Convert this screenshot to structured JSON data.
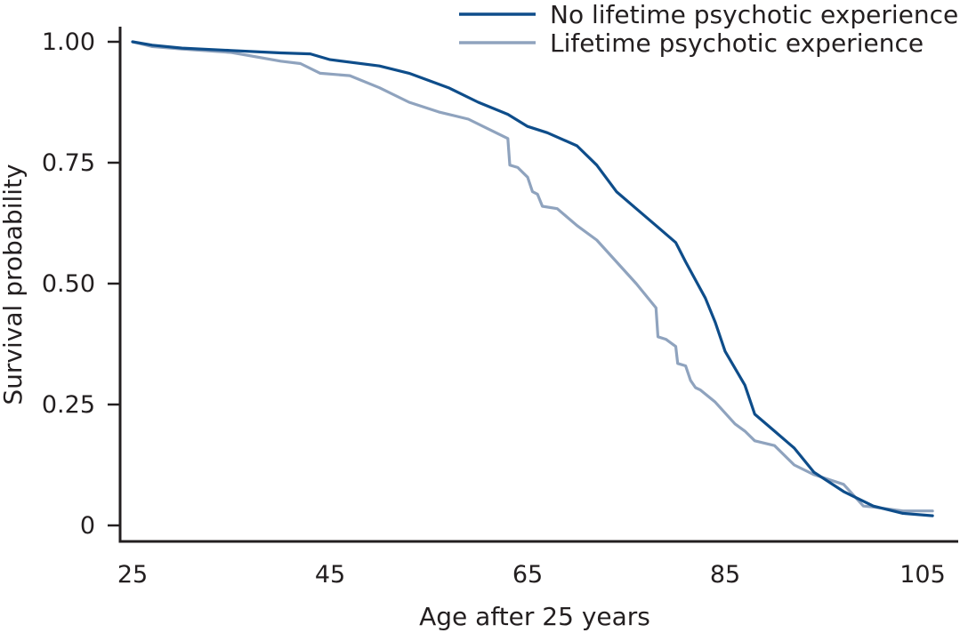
{
  "chart_data": {
    "type": "line",
    "title": "",
    "xlabel": "Age after 25 years",
    "ylabel": "Survival probability",
    "xlim": [
      25,
      107
    ],
    "ylim": [
      0,
      1.04
    ],
    "x_ticks": [
      25,
      45,
      65,
      85,
      105
    ],
    "y_ticks": [
      0,
      0.25,
      0.5,
      0.75,
      1.0
    ],
    "y_tick_labels": [
      "0",
      "0.25",
      "0.50",
      "0.75",
      "1.00"
    ],
    "x_tick_labels": [
      "25",
      "45",
      "65",
      "85",
      "105"
    ],
    "grid": false,
    "legend_position": "top-right",
    "series": [
      {
        "name": "No lifetime psychotic experience",
        "color": "#0e4d8a",
        "x": [
          25,
          27,
          30,
          35,
          40,
          43,
          45,
          50,
          53,
          57,
          60,
          63,
          65,
          67,
          70,
          72,
          74,
          76,
          78,
          80,
          81,
          83,
          84,
          85,
          87,
          88,
          90,
          92,
          94,
          97,
          100,
          103,
          106
        ],
        "y": [
          1.0,
          0.993,
          0.987,
          0.982,
          0.977,
          0.975,
          0.963,
          0.95,
          0.935,
          0.905,
          0.875,
          0.85,
          0.825,
          0.812,
          0.785,
          0.745,
          0.69,
          0.655,
          0.62,
          0.585,
          0.545,
          0.47,
          0.42,
          0.36,
          0.29,
          0.23,
          0.195,
          0.16,
          0.11,
          0.07,
          0.04,
          0.025,
          0.02
        ]
      },
      {
        "name": "Lifetime psychotic experience",
        "color": "#8fa3be",
        "x": [
          25,
          27,
          30,
          35,
          40,
          42,
          44,
          47,
          50,
          53,
          56,
          59,
          61,
          63,
          63.2,
          64,
          65,
          65.5,
          66,
          66.5,
          68,
          70,
          72,
          74,
          76,
          78,
          78.2,
          79,
          80,
          80.2,
          81,
          81.5,
          82,
          82.5,
          84,
          86,
          87,
          88,
          90,
          92,
          94,
          97,
          99,
          100,
          103,
          106
        ],
        "y": [
          1.0,
          0.99,
          0.985,
          0.978,
          0.96,
          0.955,
          0.935,
          0.93,
          0.905,
          0.875,
          0.855,
          0.84,
          0.82,
          0.8,
          0.745,
          0.74,
          0.72,
          0.69,
          0.685,
          0.66,
          0.655,
          0.62,
          0.59,
          0.545,
          0.5,
          0.45,
          0.39,
          0.385,
          0.37,
          0.335,
          0.33,
          0.3,
          0.285,
          0.28,
          0.255,
          0.21,
          0.195,
          0.175,
          0.165,
          0.125,
          0.105,
          0.085,
          0.04,
          0.038,
          0.03,
          0.03
        ]
      }
    ]
  }
}
